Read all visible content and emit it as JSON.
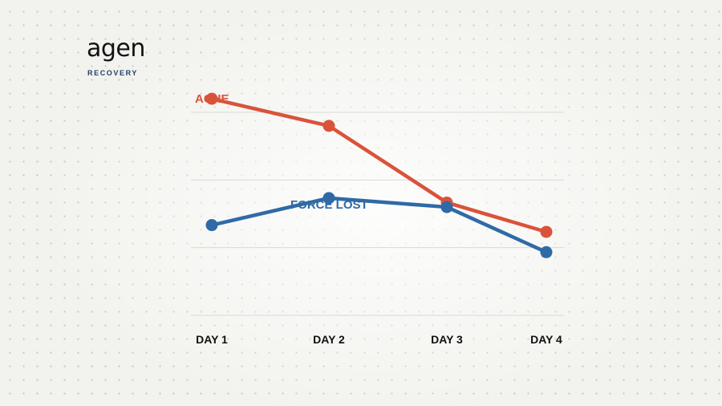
{
  "brand": {
    "name": "agen",
    "tagline": "RECOVERY"
  },
  "colors": {
    "ache": "#d9533a",
    "force_lost": "#2f6aa6",
    "grid": "#d9d9d4",
    "text": "#111111"
  },
  "chart_data": {
    "type": "line",
    "categories": [
      "DAY 1",
      "DAY 2",
      "DAY 3",
      "DAY 4"
    ],
    "series": [
      {
        "name": "ACHE",
        "values": [
          9.6,
          8.4,
          5.0,
          3.7
        ]
      },
      {
        "name": "FORCE LOST",
        "values": [
          4.0,
          5.2,
          4.8,
          2.8
        ]
      }
    ],
    "ylim": [
      0,
      9.0
    ],
    "grid": true,
    "legend": "inline series labels"
  }
}
